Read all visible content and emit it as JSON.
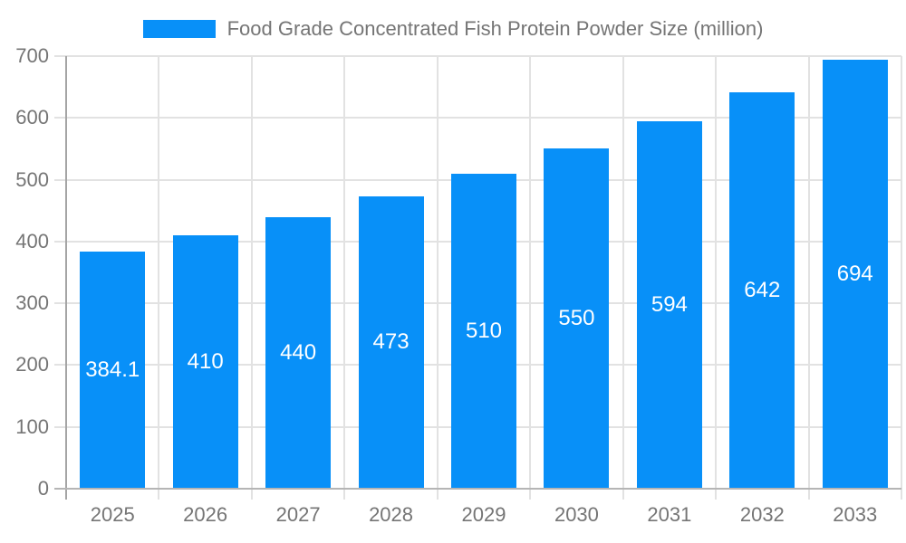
{
  "chart_data": {
    "type": "bar",
    "title": "Food Grade Concentrated Fish Protein Powder Size (million)",
    "legend_position": "top-center",
    "categories": [
      "2025",
      "2026",
      "2027",
      "2028",
      "2029",
      "2030",
      "2031",
      "2032",
      "2033"
    ],
    "values": [
      384.1,
      410,
      440,
      473,
      510,
      550,
      594,
      642,
      694
    ],
    "bar_labels": [
      "384.1",
      "410",
      "440",
      "473",
      "510",
      "550",
      "594",
      "642",
      "694"
    ],
    "xlabel": "",
    "ylabel": "",
    "ylim": [
      0,
      700
    ],
    "yticks": [
      0,
      100,
      200,
      300,
      400,
      500,
      600,
      700
    ],
    "grid": true,
    "colors": {
      "bar": "#0890F8",
      "bar_label_text": "#FFFFFF",
      "axis_text": "#757575",
      "legend_text": "#757575",
      "gridline": "#E2E2E2",
      "x_axis_line": "#B5B5B5",
      "y_axis_line": "#A5A5A5",
      "background": "#FFFFFF"
    }
  }
}
